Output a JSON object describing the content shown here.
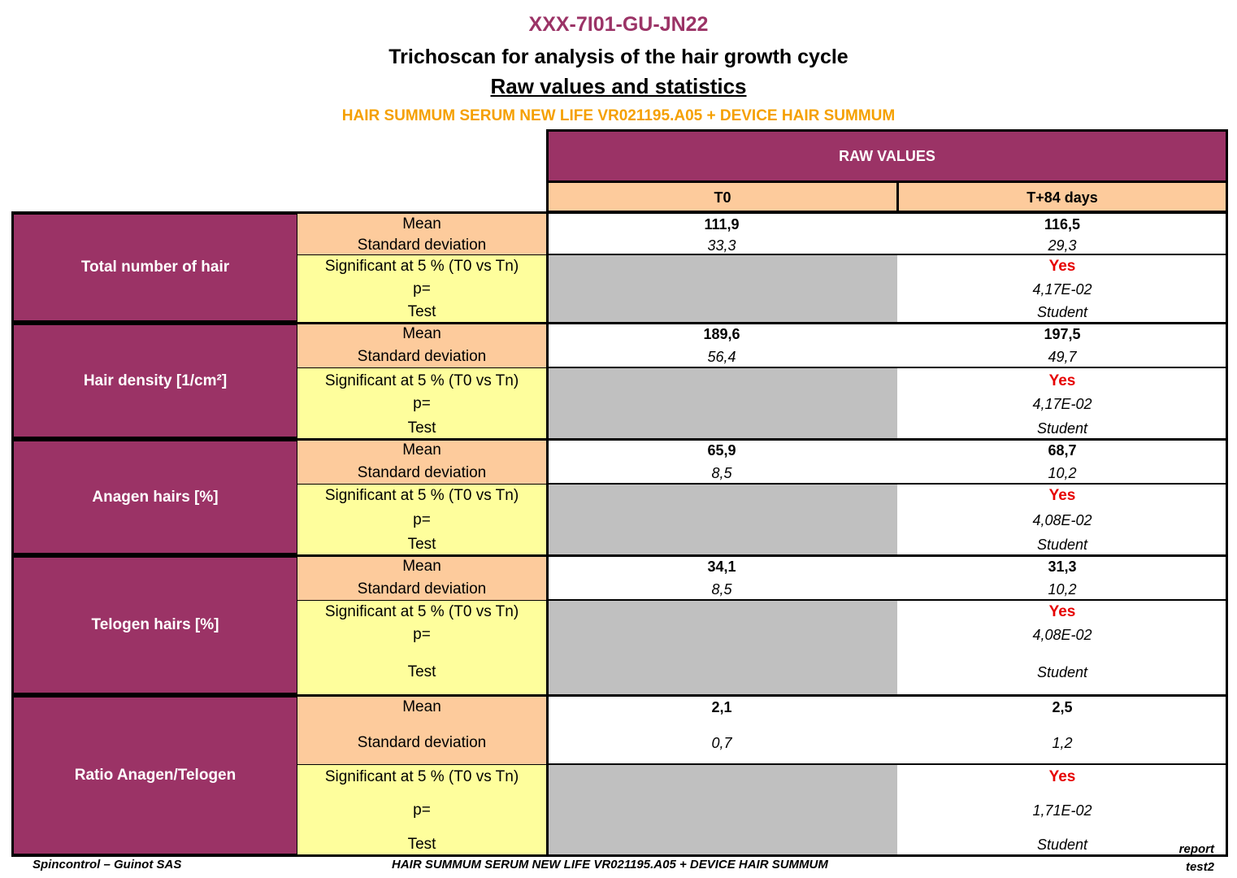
{
  "header": {
    "code": "XXX-7I01-GU-JN22",
    "title": "Trichoscan for analysis of the hair growth cycle",
    "subtitle": "Raw values and statistics",
    "product": "HAIR SUMMUM SERUM NEW LIFE VR021195.A05 + DEVICE HAIR SUMMUM"
  },
  "table": {
    "group_header": "RAW VALUES",
    "columns": [
      "T0",
      "T+84 days"
    ],
    "row_labels": {
      "mean": "Mean",
      "sd": "Standard deviation",
      "significant": "Significant at 5 % (T0 vs Tn)",
      "p": "p=",
      "test": "Test"
    },
    "sections": [
      {
        "name": "Total number of hair",
        "mean": [
          "111,9",
          "116,5"
        ],
        "sd": [
          "33,3",
          "29,3"
        ],
        "significant": "Yes",
        "p": "4,17E-02",
        "test": "Student"
      },
      {
        "name": "Hair density [1/cm²]",
        "mean": [
          "189,6",
          "197,5"
        ],
        "sd": [
          "56,4",
          "49,7"
        ],
        "significant": "Yes",
        "p": "4,17E-02",
        "test": "Student"
      },
      {
        "name": "Anagen hairs [%]",
        "mean": [
          "65,9",
          "68,7"
        ],
        "sd": [
          "8,5",
          "10,2"
        ],
        "significant": "Yes",
        "p": "4,08E-02",
        "test": "Student"
      },
      {
        "name": "Telogen hairs [%]",
        "mean": [
          "34,1",
          "31,3"
        ],
        "sd": [
          "8,5",
          "10,2"
        ],
        "significant": "Yes",
        "p": "4,08E-02",
        "test": "Student"
      },
      {
        "name": "Ratio Anagen/Telogen",
        "mean": [
          "2,1",
          "2,5"
        ],
        "sd": [
          "0,7",
          "1,2"
        ],
        "significant": "Yes",
        "p": "1,71E-02",
        "test": "Student"
      }
    ]
  },
  "footer": {
    "company": "Spincontrol – Guinot SAS",
    "product": "HAIR SUMMUM SERUM NEW LIFE VR021195.A05 + DEVICE HAIR SUMMUM",
    "report_line1": "report",
    "report_line2": "test2"
  }
}
